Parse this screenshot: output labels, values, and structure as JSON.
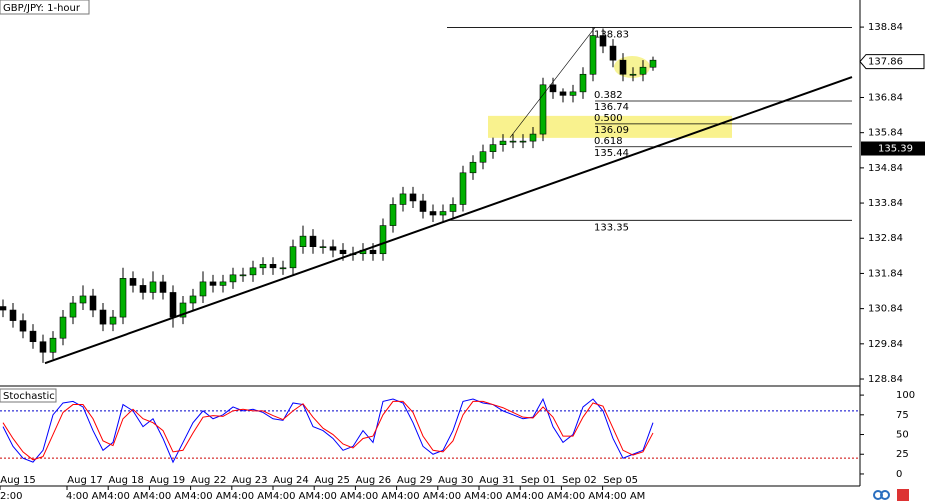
{
  "chart_data": {
    "type": "candlestick",
    "title": "GBP/JPY: 1-hour",
    "open": [
      130.9,
      130.8,
      130.5,
      130.2,
      129.9,
      129.6,
      130.0,
      130.6,
      131.0,
      131.2,
      130.8,
      130.4,
      130.6,
      131.7,
      131.5,
      131.3,
      131.6,
      131.3,
      130.6,
      131.0,
      131.2,
      131.6,
      131.5,
      131.6,
      131.8,
      131.8,
      132.0,
      132.1,
      132.0,
      132.0,
      132.6,
      132.9,
      132.6,
      132.6,
      132.5,
      132.4,
      132.4,
      132.5,
      132.4,
      133.2,
      133.8,
      134.1,
      133.9,
      133.6,
      133.5,
      133.6,
      133.8,
      134.7,
      135.0,
      135.3,
      135.5,
      135.6,
      135.6,
      135.6,
      135.8,
      137.2,
      137.0,
      136.9,
      137.0,
      137.5,
      138.6,
      138.3,
      137.9,
      137.5,
      137.5,
      137.7
    ],
    "high": [
      131.1,
      131.0,
      130.7,
      130.4,
      130.1,
      130.2,
      130.8,
      131.2,
      131.5,
      131.4,
      131.0,
      130.8,
      132.0,
      131.9,
      131.7,
      131.9,
      131.8,
      131.5,
      131.2,
      131.4,
      131.9,
      131.8,
      131.8,
      132.0,
      132.0,
      132.2,
      132.3,
      132.3,
      132.2,
      132.8,
      133.2,
      133.1,
      132.8,
      132.8,
      132.7,
      132.6,
      132.7,
      132.7,
      133.4,
      134.0,
      134.3,
      134.3,
      134.1,
      133.8,
      133.8,
      134.0,
      134.9,
      135.2,
      135.5,
      135.7,
      135.8,
      135.8,
      135.8,
      136.0,
      137.4,
      137.4,
      137.1,
      137.2,
      137.7,
      138.83,
      138.8,
      138.5,
      138.1,
      137.7,
      137.9,
      138.0
    ],
    "low": [
      130.6,
      130.3,
      130.0,
      129.7,
      129.3,
      129.4,
      129.8,
      130.4,
      130.8,
      130.6,
      130.2,
      130.2,
      130.4,
      131.3,
      131.1,
      131.1,
      131.1,
      130.3,
      130.4,
      130.8,
      131.0,
      131.3,
      131.3,
      131.4,
      131.6,
      131.6,
      131.8,
      131.8,
      131.8,
      131.8,
      132.4,
      132.4,
      132.4,
      132.3,
      132.2,
      132.2,
      132.2,
      132.2,
      132.2,
      133.0,
      133.6,
      133.7,
      133.4,
      133.3,
      133.3,
      133.4,
      133.6,
      134.5,
      134.8,
      135.1,
      135.3,
      135.4,
      135.4,
      135.4,
      135.6,
      136.8,
      136.7,
      136.7,
      136.8,
      137.3,
      138.1,
      137.7,
      137.3,
      137.3,
      137.3,
      137.6
    ],
    "close": [
      130.8,
      130.5,
      130.2,
      129.9,
      129.6,
      130.0,
      130.6,
      131.0,
      131.2,
      130.8,
      130.4,
      130.6,
      131.7,
      131.5,
      131.3,
      131.6,
      131.3,
      130.6,
      131.0,
      131.2,
      131.6,
      131.5,
      131.6,
      131.8,
      131.8,
      132.0,
      132.1,
      132.0,
      132.0,
      132.6,
      132.9,
      132.6,
      132.6,
      132.5,
      132.4,
      132.4,
      132.5,
      132.4,
      133.2,
      133.8,
      134.1,
      133.9,
      133.6,
      133.5,
      133.6,
      133.8,
      134.7,
      135.0,
      135.3,
      135.5,
      135.6,
      135.6,
      135.6,
      135.8,
      137.2,
      137.0,
      136.9,
      137.0,
      137.5,
      138.6,
      138.3,
      137.9,
      137.5,
      137.5,
      137.7,
      137.9
    ],
    "up_color": "#00b000",
    "down_color": "#000000",
    "ylim": [
      128.67,
      139.61
    ],
    "yticks": [
      128.84,
      129.84,
      130.84,
      131.84,
      132.84,
      133.84,
      134.84,
      135.84,
      136.84,
      137.84,
      138.84
    ],
    "dates": [
      "Aug 15",
      "Aug 17",
      "Aug 18",
      "Aug 19",
      "Aug 22",
      "Aug 23",
      "Aug 24",
      "Aug 25",
      "Aug 26",
      "Aug 29",
      "Aug 30",
      "Aug 31",
      "Sep 01",
      "Sep 02",
      "Sep 05"
    ],
    "time_labels": [
      "2:00",
      "4:00 AM",
      "4:00 AM",
      "4:00 AM",
      "4:00 AM",
      "4:00 AM",
      "4:00 AM",
      "4:00 AM",
      "4:00 AM",
      "4:00 AM",
      "4:00 AM",
      "4:00 AM",
      "4:00 AM",
      "4:00 AM",
      "4:00 AM"
    ],
    "current_price": 137.86,
    "marker_price": 135.39,
    "fib_high": 138.83,
    "fib_low": 133.35,
    "fib_levels": [
      {
        "ratio": "0.382",
        "price": 136.74
      },
      {
        "ratio": "0.500",
        "price": 136.09
      },
      {
        "ratio": "0.618",
        "price": 135.44
      }
    ],
    "trendline": {
      "from": [
        4.2,
        129.29
      ],
      "to": [
        84.9,
        137.42
      ]
    },
    "stochastic": {
      "title": "Stochastic",
      "ylim": [
        -14,
        109
      ],
      "yticks": [
        0,
        25,
        50,
        75,
        100
      ],
      "levels": [
        {
          "value": 80,
          "color": "#0000cc"
        },
        {
          "value": 20,
          "color": "#cc0000"
        }
      ],
      "series": [
        {
          "color": "#0000ff",
          "values": [
            60,
            35,
            20,
            15,
            30,
            75,
            90,
            92,
            85,
            55,
            30,
            40,
            88,
            80,
            60,
            70,
            45,
            15,
            40,
            65,
            80,
            70,
            75,
            85,
            80,
            82,
            78,
            70,
            68,
            90,
            88,
            60,
            55,
            45,
            30,
            35,
            55,
            40,
            92,
            95,
            90,
            65,
            35,
            25,
            30,
            55,
            92,
            95,
            90,
            88,
            80,
            75,
            70,
            72,
            95,
            60,
            40,
            50,
            85,
            95,
            80,
            45,
            20,
            25,
            30,
            65
          ]
        },
        {
          "color": "#ff0000",
          "values": [
            65,
            45,
            28,
            18,
            22,
            50,
            78,
            88,
            88,
            70,
            42,
            36,
            70,
            82,
            70,
            65,
            55,
            28,
            30,
            52,
            72,
            74,
            73,
            80,
            82,
            80,
            80,
            74,
            69,
            80,
            89,
            72,
            58,
            50,
            38,
            33,
            45,
            48,
            75,
            92,
            92,
            78,
            48,
            30,
            28,
            42,
            75,
            92,
            92,
            88,
            84,
            78,
            72,
            71,
            85,
            72,
            48,
            48,
            72,
            90,
            86,
            58,
            30,
            24,
            28,
            52
          ]
        }
      ]
    }
  }
}
